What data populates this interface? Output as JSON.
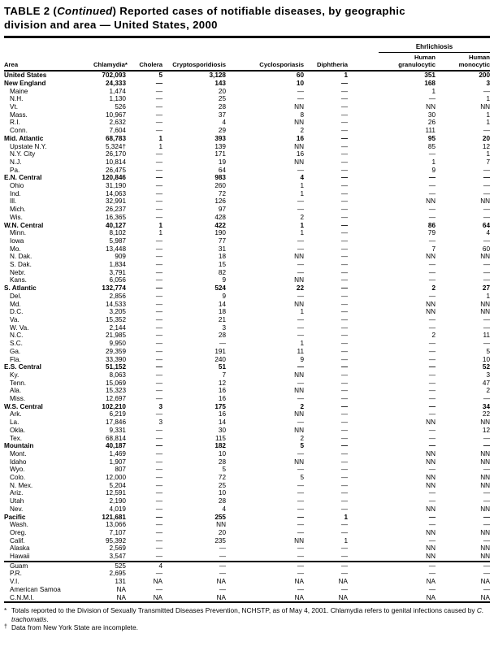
{
  "title": {
    "part1": "TABLE 2 (",
    "continued": "Continued",
    "part2": ")  Reported cases of notifiable diseases, by geographic",
    "line2": "division and area — United States, 2000"
  },
  "header": {
    "area": "Area",
    "cols": [
      "Chlamydia*",
      "Cholera",
      "Cryptosporidiosis",
      "Cyclosporiasis",
      "Diphtheria"
    ],
    "group": "Ehrlichiosis",
    "group_cols": [
      {
        "line1": "Human",
        "line2": "granulocytic"
      },
      {
        "line1": "Human",
        "line2": "monocytic"
      }
    ]
  },
  "rows": [
    {
      "area": "United States",
      "bold": true,
      "indent": false,
      "values": [
        "702,093",
        "5",
        "3,128",
        "60",
        "1",
        "351",
        "200"
      ]
    },
    {
      "area": "New England",
      "bold": true,
      "indent": false,
      "values": [
        "24,333",
        "—",
        "143",
        "10",
        "—",
        "168",
        "3"
      ]
    },
    {
      "area": "Maine",
      "indent": true,
      "values": [
        "1,474",
        "—",
        "20",
        "—",
        "—",
        "1",
        "—"
      ]
    },
    {
      "area": "N.H.",
      "indent": true,
      "values": [
        "1,130",
        "—",
        "25",
        "—",
        "—",
        "—",
        "1"
      ]
    },
    {
      "area": "Vt.",
      "indent": true,
      "values": [
        "526",
        "—",
        "28",
        "NN",
        "—",
        "NN",
        "NN"
      ]
    },
    {
      "area": "Mass.",
      "indent": true,
      "values": [
        "10,967",
        "—",
        "37",
        "8",
        "—",
        "30",
        "1"
      ]
    },
    {
      "area": "R.I.",
      "indent": true,
      "values": [
        "2,632",
        "—",
        "4",
        "NN",
        "—",
        "26",
        "1"
      ]
    },
    {
      "area": "Conn.",
      "indent": true,
      "values": [
        "7,604",
        "—",
        "29",
        "2",
        "—",
        "111",
        "—"
      ]
    },
    {
      "area": "Mid. Atlantic",
      "bold": true,
      "indent": false,
      "values": [
        "68,783",
        "1",
        "393",
        "16",
        "—",
        "95",
        "20"
      ]
    },
    {
      "area": "Upstate N.Y.",
      "indent": true,
      "values": [
        "5,324†",
        "1",
        "139",
        "NN",
        "—",
        "85",
        "12"
      ]
    },
    {
      "area": "N.Y. City",
      "indent": true,
      "values": [
        "26,170",
        "—",
        "171",
        "16",
        "—",
        "—",
        "1"
      ]
    },
    {
      "area": "N.J.",
      "indent": true,
      "values": [
        "10,814",
        "—",
        "19",
        "NN",
        "—",
        "1",
        "7"
      ]
    },
    {
      "area": "Pa.",
      "indent": true,
      "values": [
        "26,475",
        "—",
        "64",
        "—",
        "—",
        "9",
        "—"
      ]
    },
    {
      "area": "E.N. Central",
      "bold": true,
      "indent": false,
      "values": [
        "120,846",
        "—",
        "983",
        "4",
        "—",
        "—",
        "—"
      ]
    },
    {
      "area": "Ohio",
      "indent": true,
      "values": [
        "31,190",
        "—",
        "260",
        "1",
        "—",
        "—",
        "—"
      ]
    },
    {
      "area": "Ind.",
      "indent": true,
      "values": [
        "14,063",
        "—",
        "72",
        "1",
        "—",
        "—",
        "—"
      ]
    },
    {
      "area": "Ill.",
      "indent": true,
      "values": [
        "32,991",
        "—",
        "126",
        "—",
        "—",
        "NN",
        "NN"
      ]
    },
    {
      "area": "Mich.",
      "indent": true,
      "values": [
        "26,237",
        "—",
        "97",
        "—",
        "—",
        "—",
        "—"
      ]
    },
    {
      "area": "Wis.",
      "indent": true,
      "values": [
        "16,365",
        "—",
        "428",
        "2",
        "—",
        "—",
        "—"
      ]
    },
    {
      "area": "W.N. Central",
      "bold": true,
      "indent": false,
      "values": [
        "40,127",
        "1",
        "422",
        "1",
        "—",
        "86",
        "64"
      ]
    },
    {
      "area": "Minn.",
      "indent": true,
      "values": [
        "8,102",
        "1",
        "190",
        "1",
        "—",
        "79",
        "4"
      ]
    },
    {
      "area": "Iowa",
      "indent": true,
      "values": [
        "5,987",
        "—",
        "77",
        "—",
        "—",
        "—",
        "—"
      ]
    },
    {
      "area": "Mo.",
      "indent": true,
      "values": [
        "13,448",
        "—",
        "31",
        "—",
        "—",
        "7",
        "60"
      ]
    },
    {
      "area": "N. Dak.",
      "indent": true,
      "values": [
        "909",
        "—",
        "18",
        "NN",
        "—",
        "NN",
        "NN"
      ]
    },
    {
      "area": "S. Dak.",
      "indent": true,
      "values": [
        "1,834",
        "—",
        "15",
        "—",
        "—",
        "—",
        "—"
      ]
    },
    {
      "area": "Nebr.",
      "indent": true,
      "values": [
        "3,791",
        "—",
        "82",
        "—",
        "—",
        "—",
        "—"
      ]
    },
    {
      "area": "Kans.",
      "indent": true,
      "values": [
        "6,056",
        "—",
        "9",
        "NN",
        "—",
        "—",
        "—"
      ]
    },
    {
      "area": "S. Atlantic",
      "bold": true,
      "indent": false,
      "values": [
        "132,774",
        "—",
        "524",
        "22",
        "—",
        "2",
        "27"
      ]
    },
    {
      "area": "Del.",
      "indent": true,
      "values": [
        "2,856",
        "—",
        "9",
        "—",
        "—",
        "—",
        "1"
      ]
    },
    {
      "area": "Md.",
      "indent": true,
      "values": [
        "14,533",
        "—",
        "14",
        "NN",
        "—",
        "NN",
        "NN"
      ]
    },
    {
      "area": "D.C.",
      "indent": true,
      "values": [
        "3,205",
        "—",
        "18",
        "1",
        "—",
        "NN",
        "NN"
      ]
    },
    {
      "area": "Va.",
      "indent": true,
      "values": [
        "15,352",
        "—",
        "21",
        "—",
        "—",
        "—",
        "—"
      ]
    },
    {
      "area": "W. Va.",
      "indent": true,
      "values": [
        "2,144",
        "—",
        "3",
        "—",
        "—",
        "—",
        "—"
      ]
    },
    {
      "area": "N.C.",
      "indent": true,
      "values": [
        "21,985",
        "—",
        "28",
        "—",
        "—",
        "2",
        "11"
      ]
    },
    {
      "area": "S.C.",
      "indent": true,
      "values": [
        "9,950",
        "—",
        "—",
        "1",
        "—",
        "—",
        "—"
      ]
    },
    {
      "area": "Ga.",
      "indent": true,
      "values": [
        "29,359",
        "—",
        "191",
        "11",
        "—",
        "—",
        "5"
      ]
    },
    {
      "area": "Fla.",
      "indent": true,
      "values": [
        "33,390",
        "—",
        "240",
        "9",
        "—",
        "—",
        "10"
      ]
    },
    {
      "area": "E.S. Central",
      "bold": true,
      "indent": false,
      "values": [
        "51,152",
        "—",
        "51",
        "—",
        "—",
        "—",
        "52"
      ]
    },
    {
      "area": "Ky.",
      "indent": true,
      "values": [
        "8,063",
        "—",
        "7",
        "NN",
        "—",
        "—",
        "3"
      ]
    },
    {
      "area": "Tenn.",
      "indent": true,
      "values": [
        "15,069",
        "—",
        "12",
        "—",
        "—",
        "—",
        "47"
      ]
    },
    {
      "area": "Ala.",
      "indent": true,
      "values": [
        "15,323",
        "—",
        "16",
        "NN",
        "—",
        "—",
        "2"
      ]
    },
    {
      "area": "Miss.",
      "indent": true,
      "values": [
        "12,697",
        "—",
        "16",
        "—",
        "—",
        "—",
        "—"
      ]
    },
    {
      "area": "W.S. Central",
      "bold": true,
      "indent": false,
      "values": [
        "102,210",
        "3",
        "175",
        "2",
        "—",
        "—",
        "34"
      ]
    },
    {
      "area": "Ark.",
      "indent": true,
      "values": [
        "6,219",
        "—",
        "16",
        "NN",
        "—",
        "—",
        "22"
      ]
    },
    {
      "area": "La.",
      "indent": true,
      "values": [
        "17,846",
        "3",
        "14",
        "—",
        "—",
        "NN",
        "NN"
      ]
    },
    {
      "area": "Okla.",
      "indent": true,
      "values": [
        "9,331",
        "—",
        "30",
        "NN",
        "—",
        "—",
        "12"
      ]
    },
    {
      "area": "Tex.",
      "indent": true,
      "values": [
        "68,814",
        "—",
        "115",
        "2",
        "—",
        "—",
        "—"
      ]
    },
    {
      "area": "Mountain",
      "bold": true,
      "indent": false,
      "values": [
        "40,187",
        "—",
        "182",
        "5",
        "—",
        "—",
        "—"
      ]
    },
    {
      "area": "Mont.",
      "indent": true,
      "values": [
        "1,469",
        "—",
        "10",
        "—",
        "—",
        "NN",
        "NN"
      ]
    },
    {
      "area": "Idaho",
      "indent": true,
      "values": [
        "1,907",
        "—",
        "28",
        "NN",
        "—",
        "NN",
        "NN"
      ]
    },
    {
      "area": "Wyo.",
      "indent": true,
      "values": [
        "807",
        "—",
        "5",
        "—",
        "—",
        "—",
        "—"
      ]
    },
    {
      "area": "Colo.",
      "indent": true,
      "values": [
        "12,000",
        "—",
        "72",
        "5",
        "—",
        "NN",
        "NN"
      ]
    },
    {
      "area": "N. Mex.",
      "indent": true,
      "values": [
        "5,204",
        "—",
        "25",
        "—",
        "—",
        "NN",
        "NN"
      ]
    },
    {
      "area": "Ariz.",
      "indent": true,
      "values": [
        "12,591",
        "—",
        "10",
        "—",
        "—",
        "—",
        "—"
      ]
    },
    {
      "area": "Utah",
      "indent": true,
      "values": [
        "2,190",
        "—",
        "28",
        "—",
        "—",
        "—",
        "—"
      ]
    },
    {
      "area": "Nev.",
      "indent": true,
      "values": [
        "4,019",
        "—",
        "4",
        "—",
        "—",
        "NN",
        "NN"
      ]
    },
    {
      "area": "Pacific",
      "bold": true,
      "indent": false,
      "values": [
        "121,681",
        "—",
        "255",
        "—",
        "1",
        "—",
        "—"
      ]
    },
    {
      "area": "Wash.",
      "indent": true,
      "values": [
        "13,066",
        "—",
        "NN",
        "—",
        "—",
        "—",
        "—"
      ]
    },
    {
      "area": "Oreg.",
      "indent": true,
      "values": [
        "7,107",
        "—",
        "20",
        "—",
        "—",
        "NN",
        "NN"
      ]
    },
    {
      "area": "Calif.",
      "indent": true,
      "values": [
        "95,392",
        "—",
        "235",
        "NN",
        "1",
        "—",
        "—"
      ]
    },
    {
      "area": "Alaska",
      "indent": true,
      "values": [
        "2,569",
        "—",
        "—",
        "—",
        "—",
        "NN",
        "NN"
      ]
    },
    {
      "area": "Hawaii",
      "indent": true,
      "values": [
        "3,547",
        "—",
        "—",
        "—",
        "—",
        "NN",
        "NN"
      ]
    },
    {
      "area": "Guam",
      "indent": true,
      "rule_above": true,
      "values": [
        "525",
        "4",
        "—",
        "—",
        "—",
        "—",
        "—"
      ]
    },
    {
      "area": "P.R.",
      "indent": true,
      "values": [
        "2,695",
        "—",
        "—",
        "—",
        "—",
        "—",
        "—"
      ]
    },
    {
      "area": "V.I.",
      "indent": true,
      "values": [
        "131",
        "NA",
        "NA",
        "NA",
        "NA",
        "NA",
        "NA"
      ]
    },
    {
      "area": "American Samoa",
      "indent": true,
      "values": [
        "NA",
        "—",
        "—",
        "—",
        "—",
        "—",
        "—"
      ]
    },
    {
      "area": "C.N.M.I.",
      "indent": true,
      "values": [
        "NA",
        "NA",
        "NA",
        "NA",
        "NA",
        "NA",
        "NA"
      ]
    }
  ],
  "footnotes": [
    {
      "marker": "*",
      "text": "Totals reported to the Division of Sexually Transmitted Diseases Prevention, NCHSTP, as of May 4, 2001. Chlamydia refers to genital infections caused by ",
      "italic": "C. trachomatis",
      "suffix": "."
    },
    {
      "marker": "†",
      "text": "Data from New York State are incomplete.",
      "italic": "",
      "suffix": ""
    }
  ],
  "colors": {
    "text": "#000000",
    "background": "#ffffff",
    "rule": "#000000"
  }
}
